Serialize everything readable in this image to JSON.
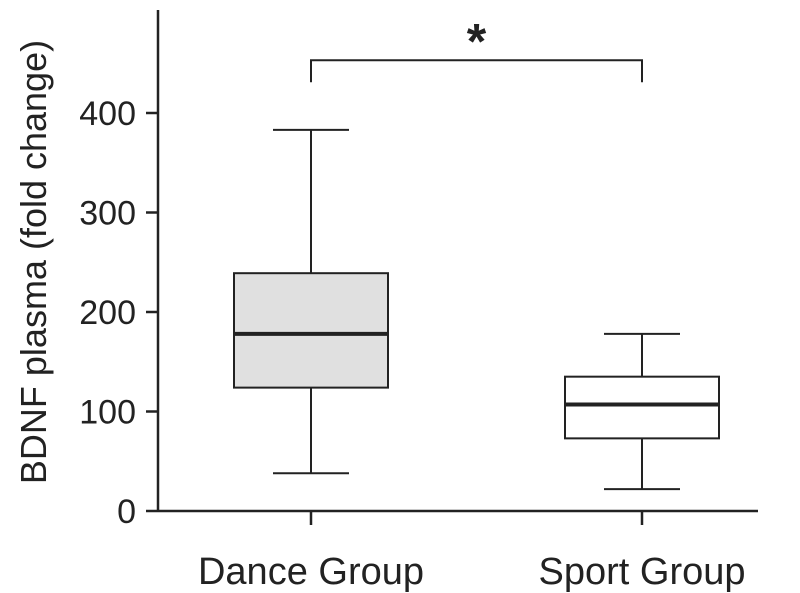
{
  "chart_data": {
    "type": "box",
    "title": "",
    "xlabel": "",
    "ylabel": "BDNF plasma (fold change)",
    "ylim": [
      0,
      500
    ],
    "yticks": [
      0,
      100,
      200,
      300,
      400
    ],
    "grid": false,
    "legend": "none",
    "categories": [
      "Dance Group",
      "Sport Group"
    ],
    "boxes": [
      {
        "category": "Dance Group",
        "min": 38,
        "q1": 124,
        "median": 178,
        "q3": 239,
        "max": 383,
        "fill": "#e0e0e0"
      },
      {
        "category": "Sport Group",
        "min": 22,
        "q1": 73,
        "median": 107,
        "q3": 135,
        "max": 178,
        "fill": "#ffffff"
      }
    ],
    "significance": {
      "label": "*",
      "between": [
        "Dance Group",
        "Sport Group"
      ],
      "y": 453
    },
    "colors": {
      "axis": "#222222",
      "box_stroke": "#222222"
    }
  }
}
